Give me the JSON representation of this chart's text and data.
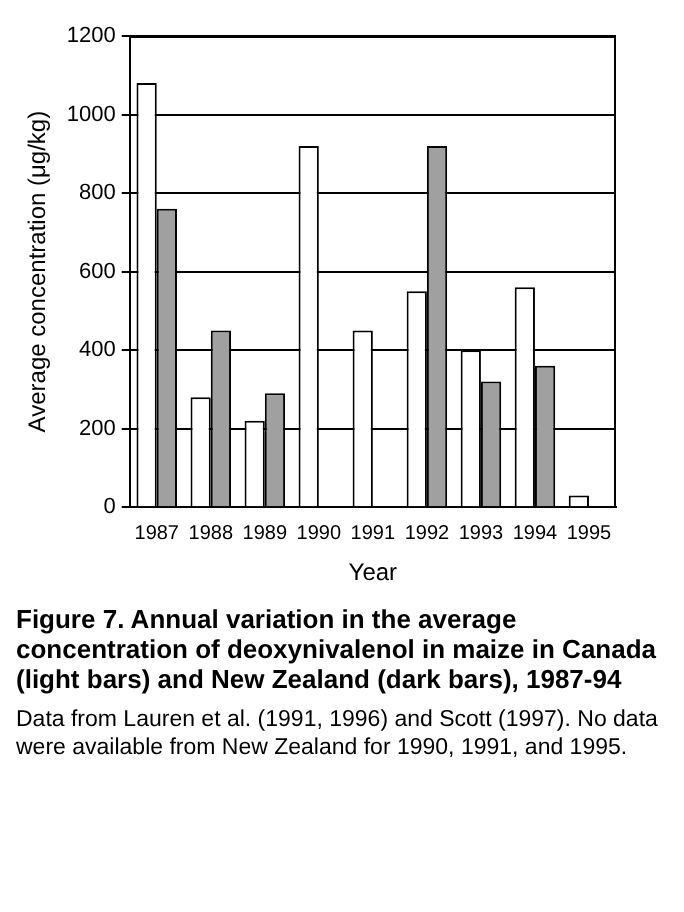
{
  "chart_data": {
    "type": "bar",
    "title": "Figure 7.  Annual variation in the average concentration of deoxynivalenol in maize in Canada (light bars) and New Zealand (dark bars), 1987-94",
    "xlabel": "Year",
    "ylabel": "Average concentration (μg/kg)",
    "annotations": [
      "Data from Lauren et al. (1991, 1996) and Scott (1997).  No data were available from New Zealand for 1990, 1991, and 1995."
    ],
    "categories": [
      "1987",
      "1988",
      "1989",
      "1990",
      "1991",
      "1992",
      "1993",
      "1994",
      "1995"
    ],
    "series": [
      {
        "color": "#ffffff",
        "values": [
          1080,
          280,
          220,
          920,
          450,
          550,
          400,
          560,
          30
        ]
      },
      {
        "color": "#a0a0a0",
        "values": [
          760,
          450,
          290,
          null,
          null,
          920,
          320,
          360,
          null
        ]
      }
    ],
    "ylim": [
      0,
      1200
    ],
    "yticks": [
      0,
      200,
      400,
      600,
      800,
      1000,
      1200
    ],
    "grid": "y",
    "legend": false
  }
}
